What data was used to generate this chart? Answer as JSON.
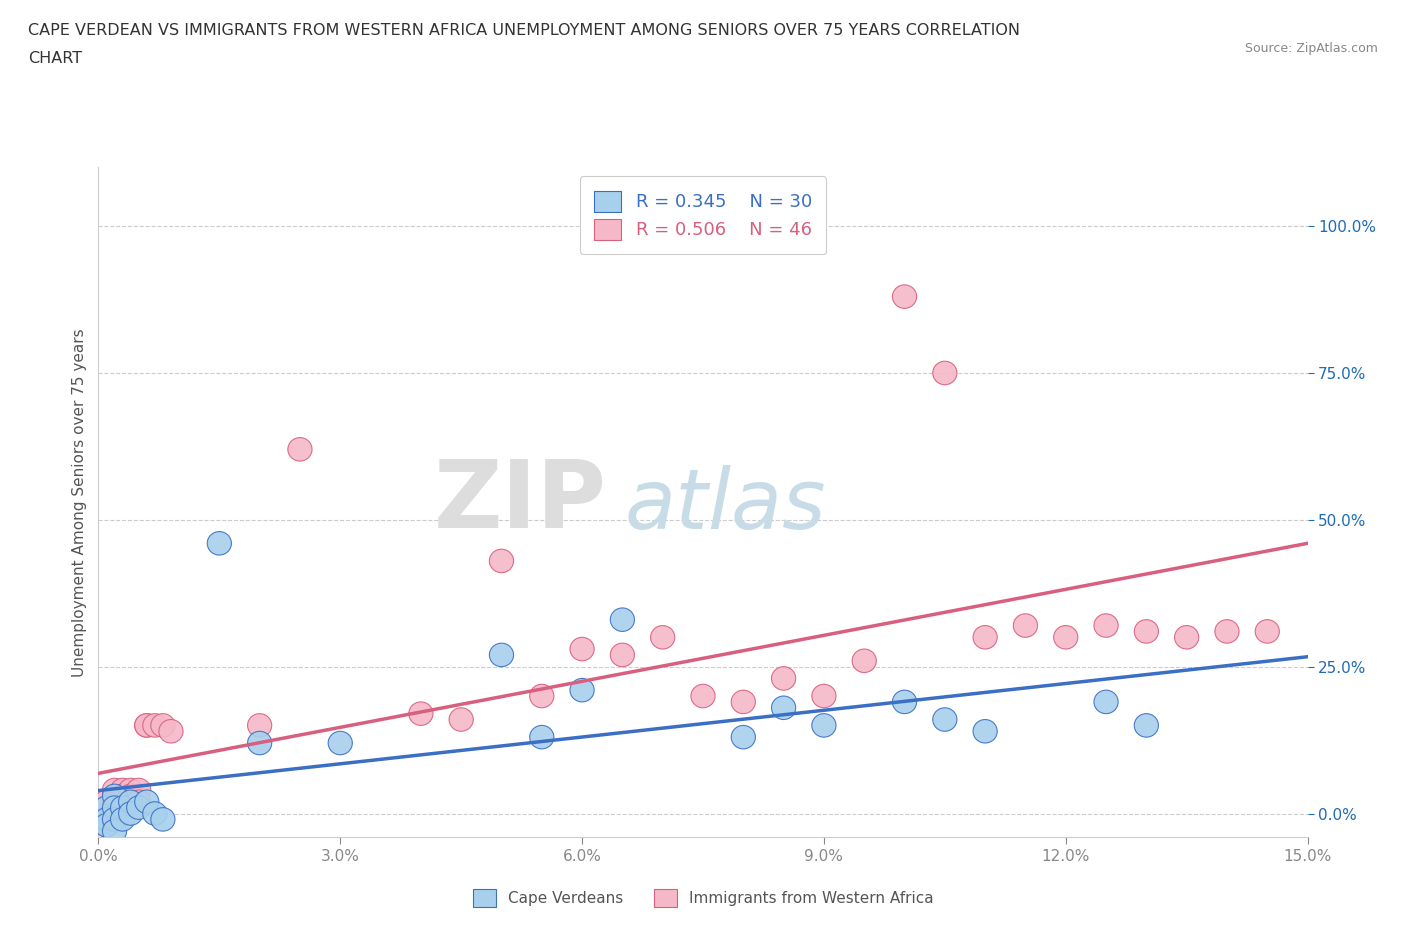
{
  "title_line1": "CAPE VERDEAN VS IMMIGRANTS FROM WESTERN AFRICA UNEMPLOYMENT AMONG SENIORS OVER 75 YEARS CORRELATION",
  "title_line2": "CHART",
  "source": "Source: ZipAtlas.com",
  "ylabel": "Unemployment Among Seniors over 75 years",
  "xlabel": "",
  "xlim": [
    0.0,
    0.15
  ],
  "ylim": [
    -0.04,
    1.1
  ],
  "yticks": [
    0.0,
    0.25,
    0.5,
    0.75,
    1.0
  ],
  "ytick_labels_right": [
    "0.0%",
    "25.0%",
    "50.0%",
    "75.0%",
    "100.0%"
  ],
  "xticks": [
    0.0,
    0.03,
    0.06,
    0.09,
    0.12,
    0.15
  ],
  "xtick_labels": [
    "0.0%",
    "3.0%",
    "6.0%",
    "9.0%",
    "12.0%",
    "15.0%"
  ],
  "watermark_ZIP": "ZIP",
  "watermark_atlas": "atlas",
  "blue_color": "#A8D0EC",
  "blue_line_color": "#3A6FC4",
  "pink_color": "#F5B8C8",
  "pink_line_color": "#D95F7F",
  "legend_R1": "R = 0.345",
  "legend_N1": "N = 30",
  "legend_R2": "R = 0.506",
  "legend_N2": "N = 46",
  "blue_scatter_x": [
    0.001,
    0.001,
    0.001,
    0.002,
    0.002,
    0.002,
    0.002,
    0.003,
    0.003,
    0.004,
    0.004,
    0.005,
    0.006,
    0.007,
    0.008,
    0.015,
    0.02,
    0.03,
    0.05,
    0.055,
    0.06,
    0.065,
    0.08,
    0.085,
    0.09,
    0.1,
    0.105,
    0.11,
    0.125,
    0.13
  ],
  "blue_scatter_y": [
    0.01,
    -0.01,
    -0.02,
    0.03,
    0.01,
    -0.01,
    -0.03,
    0.01,
    -0.01,
    0.02,
    0.0,
    0.01,
    0.02,
    0.0,
    -0.01,
    0.46,
    0.12,
    0.12,
    0.27,
    0.13,
    0.21,
    0.33,
    0.13,
    0.18,
    0.15,
    0.19,
    0.16,
    0.14,
    0.19,
    0.15
  ],
  "pink_scatter_x": [
    0.001,
    0.001,
    0.001,
    0.001,
    0.002,
    0.002,
    0.002,
    0.002,
    0.003,
    0.003,
    0.003,
    0.003,
    0.004,
    0.004,
    0.004,
    0.005,
    0.005,
    0.006,
    0.006,
    0.007,
    0.008,
    0.009,
    0.02,
    0.025,
    0.04,
    0.045,
    0.05,
    0.055,
    0.06,
    0.065,
    0.07,
    0.075,
    0.08,
    0.085,
    0.09,
    0.095,
    0.1,
    0.105,
    0.11,
    0.115,
    0.12,
    0.125,
    0.13,
    0.135,
    0.14,
    0.145
  ],
  "pink_scatter_y": [
    0.01,
    0.02,
    -0.01,
    -0.02,
    0.04,
    0.02,
    0.01,
    -0.01,
    0.04,
    0.03,
    0.01,
    0.0,
    0.04,
    0.03,
    0.02,
    0.04,
    0.02,
    0.15,
    0.15,
    0.15,
    0.15,
    0.14,
    0.15,
    0.62,
    0.17,
    0.16,
    0.43,
    0.2,
    0.28,
    0.27,
    0.3,
    0.2,
    0.19,
    0.23,
    0.2,
    0.26,
    0.88,
    0.75,
    0.3,
    0.32,
    0.3,
    0.32,
    0.31,
    0.3,
    0.31,
    0.31
  ],
  "background_color": "#FFFFFF",
  "grid_color": "#CCCCCC"
}
